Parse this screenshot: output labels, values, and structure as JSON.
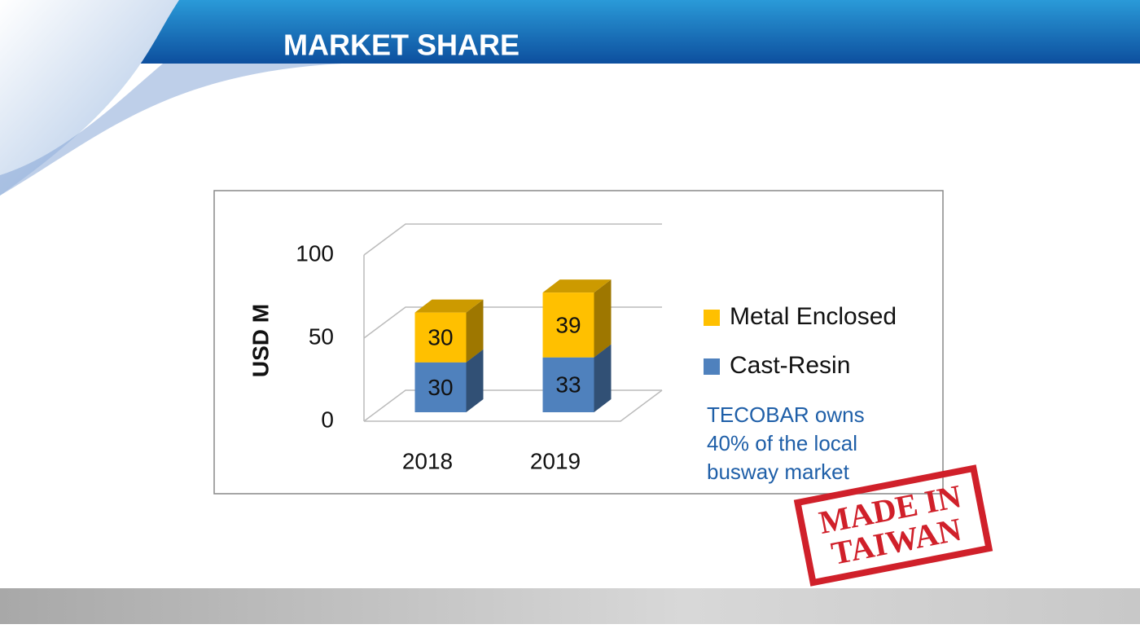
{
  "header": {
    "title": "MARKET SHARE"
  },
  "chart_data": {
    "type": "bar",
    "stacked": true,
    "categories": [
      "2018",
      "2019"
    ],
    "series": [
      {
        "name": "Cast-Resin",
        "color": "#4f81bd",
        "values": [
          30,
          33
        ]
      },
      {
        "name": "Metal Enclosed",
        "color": "#ffc000",
        "values": [
          30,
          39
        ]
      }
    ],
    "ylabel": "USD M",
    "ylim": [
      0,
      100
    ],
    "yticks": [
      0,
      50,
      100
    ],
    "grid": true,
    "legend": "right"
  },
  "annotation": {
    "lines": [
      "TECOBAR owns",
      "40% of the local",
      "busway market"
    ]
  },
  "stamp": {
    "lines": [
      "MADE IN",
      "TAIWAN"
    ]
  }
}
